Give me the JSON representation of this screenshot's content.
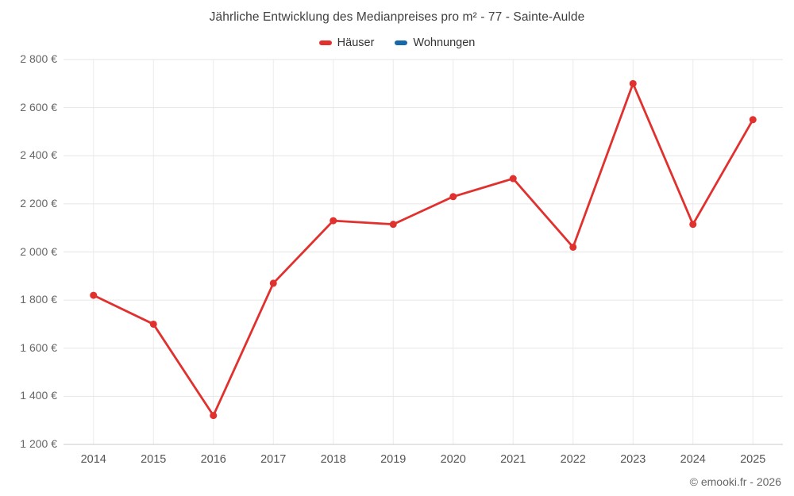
{
  "chart_data": {
    "type": "line",
    "title": "Jährliche Entwicklung des Medianpreises pro m² - 77 - Sainte-Aulde",
    "categories": [
      "2014",
      "2015",
      "2016",
      "2017",
      "2018",
      "2019",
      "2020",
      "2021",
      "2022",
      "2023",
      "2024",
      "2025"
    ],
    "series": [
      {
        "name": "Häuser",
        "color": "#e0312e",
        "values": [
          1820,
          1700,
          1320,
          1870,
          2130,
          2115,
          2230,
          2305,
          2020,
          2700,
          2115,
          2550
        ]
      },
      {
        "name": "Wohnungen",
        "color": "#1668a8",
        "values": []
      }
    ],
    "xlabel": "",
    "ylabel": "",
    "ylim": [
      1200,
      2800
    ],
    "y_tick_step": 200,
    "y_tick_labels": [
      "1 200 €",
      "1 400 €",
      "1 600 €",
      "1 800 €",
      "2 000 €",
      "2 200 €",
      "2 400 €",
      "2 600 €",
      "2 800 €"
    ],
    "grid": true,
    "legend_position": "top"
  },
  "footer": {
    "copyright": "© emooki.fr - 2026"
  }
}
